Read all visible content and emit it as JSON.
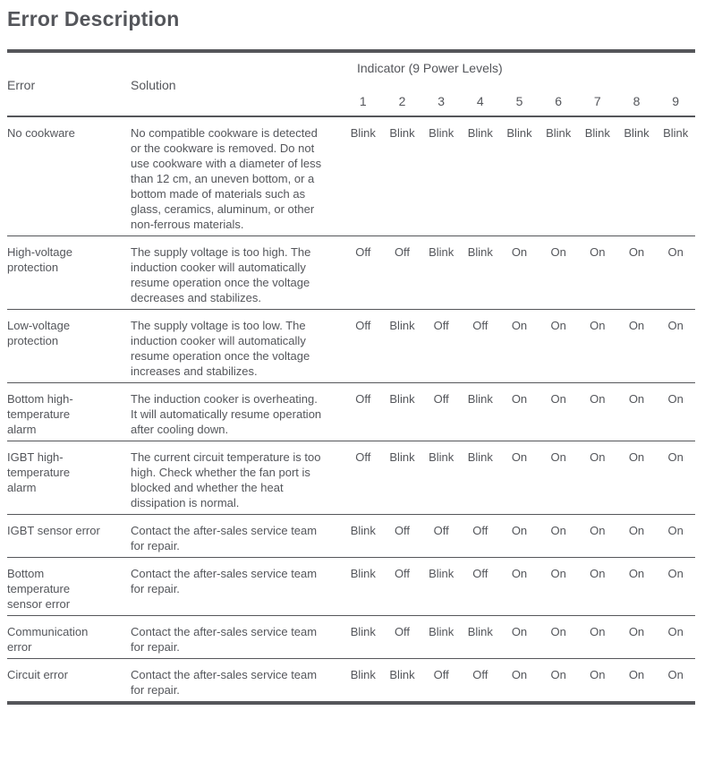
{
  "title": "Error Description",
  "colors": {
    "text": "#54565b",
    "rule": "#55565a",
    "background": "#ffffff"
  },
  "table": {
    "headers": {
      "error": "Error",
      "solution": "Solution",
      "indicator_group": "Indicator (9 Power Levels)",
      "levels": [
        "1",
        "2",
        "3",
        "4",
        "5",
        "6",
        "7",
        "8",
        "9"
      ]
    },
    "rows": [
      {
        "error": "No cookware",
        "solution": "No compatible cookware is detected or the cookware is removed. Do not use cookware with a diameter of less than 12 cm, an uneven bottom, or a bottom made of materials such as glass, ceramics, aluminum, or other non-ferrous materials.",
        "indicators": [
          "Blink",
          "Blink",
          "Blink",
          "Blink",
          "Blink",
          "Blink",
          "Blink",
          "Blink",
          "Blink"
        ]
      },
      {
        "error": "High-voltage protection",
        "solution": "The supply voltage is too high. The induction cooker will automatically resume operation once the voltage decreases and stabilizes.",
        "indicators": [
          "Off",
          "Off",
          "Blink",
          "Blink",
          "On",
          "On",
          "On",
          "On",
          "On"
        ]
      },
      {
        "error": "Low-voltage protection",
        "solution": "The supply voltage is too low. The induction cooker will automatically resume operation once the voltage increases and stabilizes.",
        "indicators": [
          "Off",
          "Blink",
          "Off",
          "Off",
          "On",
          "On",
          "On",
          "On",
          "On"
        ]
      },
      {
        "error": "Bottom high-temperature alarm",
        "solution": "The induction cooker is overheating. It will automatically resume operation after cooling down.",
        "indicators": [
          "Off",
          "Blink",
          "Off",
          "Blink",
          "On",
          "On",
          "On",
          "On",
          "On"
        ]
      },
      {
        "error": "IGBT high-temperature alarm",
        "solution": "The current circuit temperature is too high. Check whether the fan port is blocked and whether the heat dissipation is normal.",
        "indicators": [
          "Off",
          "Blink",
          "Blink",
          "Blink",
          "On",
          "On",
          "On",
          "On",
          "On"
        ]
      },
      {
        "error": "IGBT sensor error",
        "solution": "Contact the after-sales service team for repair.",
        "indicators": [
          "Blink",
          "Off",
          "Off",
          "Off",
          "On",
          "On",
          "On",
          "On",
          "On"
        ]
      },
      {
        "error": "Bottom temperature sensor error",
        "solution": "Contact the after-sales service team for repair.",
        "indicators": [
          "Blink",
          "Off",
          "Blink",
          "Off",
          "On",
          "On",
          "On",
          "On",
          "On"
        ]
      },
      {
        "error": "Communication error",
        "solution": "Contact the after-sales service team for repair.",
        "indicators": [
          "Blink",
          "Off",
          "Blink",
          "Blink",
          "On",
          "On",
          "On",
          "On",
          "On"
        ]
      },
      {
        "error": "Circuit error",
        "solution": "Contact the after-sales service team for repair.",
        "indicators": [
          "Blink",
          "Blink",
          "Off",
          "Off",
          "On",
          "On",
          "On",
          "On",
          "On"
        ]
      }
    ]
  }
}
